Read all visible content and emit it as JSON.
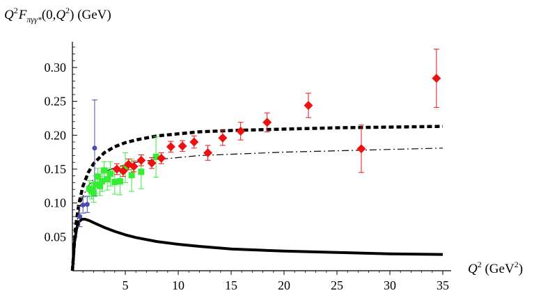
{
  "chart_data": {
    "type": "scatter",
    "ylabel": {
      "main": "Q",
      "sup1": "2",
      "F": "F",
      "sub": "πγγ*",
      "args": "(0,",
      "q": "Q",
      "sup2": "2",
      "close": ")",
      "unit": " (GeV)"
    },
    "xlabel": {
      "q": "Q",
      "sup": "2",
      "unit_open": " (GeV",
      "unit_sup": "2",
      "unit_close": ")"
    },
    "xlim": [
      0,
      35
    ],
    "ylim": [
      0,
      0.34
    ],
    "xticks": [
      5,
      10,
      15,
      20,
      25,
      30,
      35
    ],
    "yticks": [
      0.05,
      0.1,
      0.15,
      0.2,
      0.25,
      0.3
    ],
    "xtick_labels": [
      "5",
      "10",
      "15",
      "20",
      "25",
      "30",
      "35"
    ],
    "ytick_labels": [
      "0.05",
      "0.10",
      "0.15",
      "0.20",
      "0.25",
      "0.30"
    ],
    "grid": false,
    "colors": {
      "cello": "#4b4bb0",
      "cleo": "#33ee33",
      "babar": "#ee1111",
      "curve": "#000000"
    },
    "series": [
      {
        "marker": "circle",
        "color": "#4b4bb0",
        "points": [
          {
            "x": 0.7,
            "y": 0.08,
            "err": 0.015
          },
          {
            "x": 1.0,
            "y": 0.097,
            "err": 0.012
          },
          {
            "x": 1.4,
            "y": 0.098,
            "err": 0.012
          },
          {
            "x": 2.1,
            "y": 0.181,
            "err": 0.071
          }
        ]
      },
      {
        "marker": "square",
        "color": "#33ee33",
        "points": [
          {
            "x": 1.6,
            "y": 0.121,
            "err": 0.012
          },
          {
            "x": 1.8,
            "y": 0.118,
            "err": 0.012
          },
          {
            "x": 2.0,
            "y": 0.115,
            "err": 0.014
          },
          {
            "x": 2.2,
            "y": 0.127,
            "err": 0.013
          },
          {
            "x": 2.4,
            "y": 0.139,
            "err": 0.012
          },
          {
            "x": 2.6,
            "y": 0.125,
            "err": 0.014
          },
          {
            "x": 2.8,
            "y": 0.132,
            "err": 0.015
          },
          {
            "x": 3.0,
            "y": 0.148,
            "err": 0.013
          },
          {
            "x": 3.3,
            "y": 0.135,
            "err": 0.016
          },
          {
            "x": 3.6,
            "y": 0.143,
            "err": 0.018
          },
          {
            "x": 4.0,
            "y": 0.131,
            "err": 0.018
          },
          {
            "x": 4.5,
            "y": 0.132,
            "err": 0.02
          },
          {
            "x": 5.0,
            "y": 0.152,
            "err": 0.022
          },
          {
            "x": 5.6,
            "y": 0.141,
            "err": 0.024
          },
          {
            "x": 6.5,
            "y": 0.146,
            "err": 0.025
          },
          {
            "x": 7.9,
            "y": 0.168,
            "err": 0.03
          }
        ]
      },
      {
        "marker": "diamond",
        "color": "#ee1111",
        "points": [
          {
            "x": 4.2,
            "y": 0.15,
            "err": 0.008
          },
          {
            "x": 4.8,
            "y": 0.147,
            "err": 0.008
          },
          {
            "x": 5.3,
            "y": 0.157,
            "err": 0.008
          },
          {
            "x": 5.8,
            "y": 0.154,
            "err": 0.008
          },
          {
            "x": 6.5,
            "y": 0.163,
            "err": 0.008
          },
          {
            "x": 7.5,
            "y": 0.159,
            "err": 0.008
          },
          {
            "x": 8.4,
            "y": 0.166,
            "err": 0.008
          },
          {
            "x": 9.3,
            "y": 0.183,
            "err": 0.008
          },
          {
            "x": 10.4,
            "y": 0.184,
            "err": 0.008
          },
          {
            "x": 11.5,
            "y": 0.19,
            "err": 0.009
          },
          {
            "x": 12.8,
            "y": 0.174,
            "err": 0.011
          },
          {
            "x": 14.2,
            "y": 0.196,
            "err": 0.011
          },
          {
            "x": 15.9,
            "y": 0.206,
            "err": 0.013
          },
          {
            "x": 18.4,
            "y": 0.219,
            "err": 0.014
          },
          {
            "x": 22.3,
            "y": 0.244,
            "err": 0.018
          },
          {
            "x": 27.3,
            "y": 0.18,
            "err": 0.035
          },
          {
            "x": 34.4,
            "y": 0.284,
            "err": 0.043
          }
        ]
      }
    ],
    "curves": [
      {
        "style": "dashed-thick",
        "points": [
          [
            0,
            0.0
          ],
          [
            0.3,
            0.065
          ],
          [
            0.6,
            0.098
          ],
          [
            1.0,
            0.125
          ],
          [
            1.5,
            0.145
          ],
          [
            2.0,
            0.158
          ],
          [
            3.0,
            0.174
          ],
          [
            4.0,
            0.183
          ],
          [
            5.0,
            0.189
          ],
          [
            6.0,
            0.193
          ],
          [
            8.0,
            0.199
          ],
          [
            10.0,
            0.202
          ],
          [
            12.0,
            0.205
          ],
          [
            15.0,
            0.207
          ],
          [
            20.0,
            0.209
          ],
          [
            25.0,
            0.211
          ],
          [
            30.0,
            0.212
          ],
          [
            35.0,
            0.213
          ]
        ]
      },
      {
        "style": "dash-dot",
        "points": [
          [
            0,
            0.0
          ],
          [
            0.3,
            0.06
          ],
          [
            0.6,
            0.088
          ],
          [
            1.0,
            0.11
          ],
          [
            1.5,
            0.125
          ],
          [
            2.0,
            0.135
          ],
          [
            3.0,
            0.146
          ],
          [
            4.0,
            0.152
          ],
          [
            5.0,
            0.156
          ],
          [
            6.0,
            0.16
          ],
          [
            8.0,
            0.164
          ],
          [
            10.0,
            0.167
          ],
          [
            12.0,
            0.17
          ],
          [
            15.0,
            0.172
          ],
          [
            20.0,
            0.175
          ],
          [
            25.0,
            0.177
          ],
          [
            30.0,
            0.179
          ],
          [
            35.0,
            0.181
          ]
        ]
      },
      {
        "style": "solid-thick",
        "points": [
          [
            0,
            0.0
          ],
          [
            0.2,
            0.042
          ],
          [
            0.4,
            0.062
          ],
          [
            0.6,
            0.072
          ],
          [
            0.9,
            0.076
          ],
          [
            1.2,
            0.076
          ],
          [
            1.6,
            0.074
          ],
          [
            2.0,
            0.071
          ],
          [
            3.0,
            0.064
          ],
          [
            4.0,
            0.058
          ],
          [
            5.0,
            0.053
          ],
          [
            6.0,
            0.049
          ],
          [
            8.0,
            0.043
          ],
          [
            10.0,
            0.039
          ],
          [
            12.0,
            0.036
          ],
          [
            15.0,
            0.032
          ],
          [
            20.0,
            0.029
          ],
          [
            25.0,
            0.027
          ],
          [
            30.0,
            0.025
          ],
          [
            35.0,
            0.024
          ]
        ]
      }
    ]
  }
}
